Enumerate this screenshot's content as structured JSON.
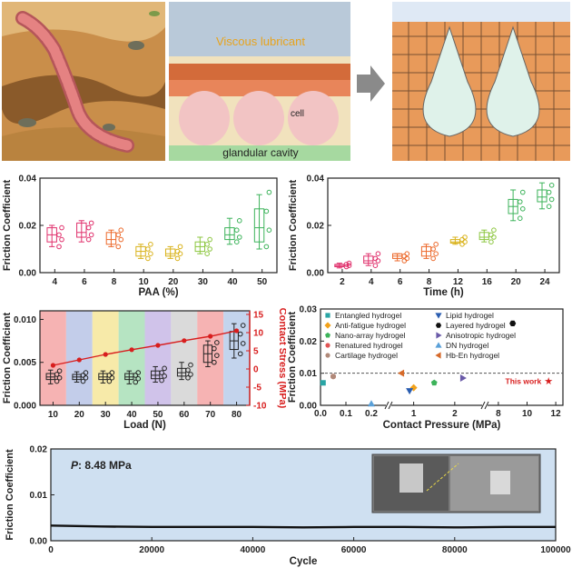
{
  "illustration": {
    "viscous_lubricant": "Viscous lubricant",
    "cell": "cell",
    "glandular_cavity": "glandular cavity"
  },
  "colors": {
    "pink": "#e0306c",
    "orange": "#ec6a2c",
    "yellow": "#d9b21a",
    "green": "#3cb35a",
    "purple": "#7c55b8",
    "gray": "#777777",
    "red": "#d81e1e",
    "blue": "#3b63b8",
    "plot_bg": "#cfe0f1"
  },
  "chart_data": [
    {
      "type": "box",
      "ylabel": "Friction Coefficient",
      "xlabel": "PAA (%)",
      "ylim": [
        0,
        0.04
      ],
      "yticks": [
        "0.00",
        "0.02",
        "0.04"
      ],
      "categories": [
        "4",
        "6",
        "8",
        "10",
        "20",
        "30",
        "40",
        "50"
      ],
      "colors": [
        "#e0306c",
        "#e0306c",
        "#ec6a2c",
        "#d9b21a",
        "#d9b21a",
        "#8cc63f",
        "#3cb35a",
        "#3cb35a"
      ],
      "boxes": [
        {
          "min": 0.011,
          "q1": 0.013,
          "median": 0.016,
          "q3": 0.019,
          "max": 0.02,
          "points": [
            0.011,
            0.014,
            0.016,
            0.019
          ]
        },
        {
          "min": 0.013,
          "q1": 0.015,
          "median": 0.017,
          "q3": 0.021,
          "max": 0.022,
          "points": [
            0.014,
            0.016,
            0.019,
            0.021
          ]
        },
        {
          "min": 0.011,
          "q1": 0.012,
          "median": 0.014,
          "q3": 0.017,
          "max": 0.018,
          "points": [
            0.011,
            0.014,
            0.016,
            0.018
          ]
        },
        {
          "min": 0.006,
          "q1": 0.007,
          "median": 0.009,
          "q3": 0.011,
          "max": 0.012,
          "points": [
            0.006,
            0.008,
            0.01,
            0.012
          ]
        },
        {
          "min": 0.006,
          "q1": 0.007,
          "median": 0.008,
          "q3": 0.01,
          "max": 0.011,
          "points": [
            0.006,
            0.008,
            0.009,
            0.011
          ]
        },
        {
          "min": 0.008,
          "q1": 0.009,
          "median": 0.011,
          "q3": 0.013,
          "max": 0.015,
          "points": [
            0.008,
            0.01,
            0.012,
            0.014
          ]
        },
        {
          "min": 0.012,
          "q1": 0.014,
          "median": 0.016,
          "q3": 0.019,
          "max": 0.023,
          "points": [
            0.013,
            0.015,
            0.018,
            0.022
          ]
        },
        {
          "min": 0.01,
          "q1": 0.013,
          "median": 0.019,
          "q3": 0.027,
          "max": 0.033,
          "points": [
            0.011,
            0.018,
            0.026,
            0.034
          ]
        }
      ]
    },
    {
      "type": "box",
      "ylabel": "Friction Coefficient",
      "xlabel": "Time (h)",
      "ylim": [
        0,
        0.04
      ],
      "yticks": [
        "0.00",
        "0.02",
        "0.04"
      ],
      "categories": [
        "2",
        "4",
        "6",
        "8",
        "12",
        "16",
        "20",
        "24"
      ],
      "colors": [
        "#e0306c",
        "#e0306c",
        "#ec6a2c",
        "#ec6a2c",
        "#d9b21a",
        "#8cc63f",
        "#3cb35a",
        "#3cb35a"
      ],
      "boxes": [
        {
          "min": 0.002,
          "q1": 0.0025,
          "median": 0.003,
          "q3": 0.0035,
          "max": 0.004,
          "points": [
            0.0025,
            0.003,
            0.0035,
            0.004
          ]
        },
        {
          "min": 0.003,
          "q1": 0.004,
          "median": 0.005,
          "q3": 0.007,
          "max": 0.008,
          "points": [
            0.003,
            0.005,
            0.006,
            0.008
          ]
        },
        {
          "min": 0.005,
          "q1": 0.006,
          "median": 0.007,
          "q3": 0.008,
          "max": 0.008,
          "points": [
            0.005,
            0.006,
            0.007,
            0.008
          ]
        },
        {
          "min": 0.006,
          "q1": 0.007,
          "median": 0.009,
          "q3": 0.011,
          "max": 0.012,
          "points": [
            0.006,
            0.008,
            0.01,
            0.012
          ]
        },
        {
          "min": 0.012,
          "q1": 0.0125,
          "median": 0.013,
          "q3": 0.014,
          "max": 0.015,
          "points": [
            0.012,
            0.013,
            0.014,
            0.015
          ]
        },
        {
          "min": 0.013,
          "q1": 0.014,
          "median": 0.015,
          "q3": 0.017,
          "max": 0.018,
          "points": [
            0.013,
            0.015,
            0.016,
            0.018
          ]
        },
        {
          "min": 0.022,
          "q1": 0.025,
          "median": 0.028,
          "q3": 0.031,
          "max": 0.035,
          "points": [
            0.023,
            0.027,
            0.03,
            0.034
          ]
        },
        {
          "min": 0.027,
          "q1": 0.03,
          "median": 0.032,
          "q3": 0.035,
          "max": 0.038,
          "points": [
            0.028,
            0.031,
            0.034,
            0.037
          ]
        }
      ]
    },
    {
      "type": "box+line",
      "ylabel": "Friction Coefficient",
      "y2label": "Contact Stress (MPa)",
      "xlabel": "Load (N)",
      "ylim": [
        0,
        0.011
      ],
      "yticks": [
        "0.000",
        "0.005",
        "0.010"
      ],
      "y2lim": [
        -10,
        16
      ],
      "y2ticks": [
        "-10",
        "-5",
        "0",
        "5",
        "10",
        "15"
      ],
      "categories": [
        "10",
        "20",
        "30",
        "40",
        "50",
        "60",
        "70",
        "80"
      ],
      "band_colors": [
        "#f4a6a6",
        "#b8c4e6",
        "#f6e69a",
        "#a9dfb7",
        "#c8b8e6",
        "#d4d4d4",
        "#f4a6a6",
        "#b8cdea"
      ],
      "boxes": [
        {
          "min": 0.0025,
          "q1": 0.003,
          "median": 0.0033,
          "q3": 0.0037,
          "max": 0.0041,
          "points": [
            0.0028,
            0.0032,
            0.0036,
            0.004
          ]
        },
        {
          "min": 0.0027,
          "q1": 0.003,
          "median": 0.0033,
          "q3": 0.0036,
          "max": 0.0039,
          "points": [
            0.0028,
            0.0032,
            0.0035,
            0.0038
          ]
        },
        {
          "min": 0.0026,
          "q1": 0.003,
          "median": 0.0033,
          "q3": 0.0037,
          "max": 0.004,
          "points": [
            0.0028,
            0.0032,
            0.0035,
            0.0038
          ]
        },
        {
          "min": 0.0025,
          "q1": 0.003,
          "median": 0.0033,
          "q3": 0.0037,
          "max": 0.004,
          "points": [
            0.0027,
            0.0031,
            0.0035,
            0.0038
          ]
        },
        {
          "min": 0.0027,
          "q1": 0.0031,
          "median": 0.0035,
          "q3": 0.004,
          "max": 0.0045,
          "points": [
            0.0029,
            0.0034,
            0.0038,
            0.0043
          ]
        },
        {
          "min": 0.003,
          "q1": 0.0034,
          "median": 0.0038,
          "q3": 0.0043,
          "max": 0.005,
          "points": [
            0.0032,
            0.0036,
            0.0041,
            0.0047
          ]
        },
        {
          "min": 0.0045,
          "q1": 0.005,
          "median": 0.006,
          "q3": 0.007,
          "max": 0.0075,
          "points": [
            0.005,
            0.0058,
            0.0066,
            0.0073
          ]
        },
        {
          "min": 0.0055,
          "q1": 0.0065,
          "median": 0.0075,
          "q3": 0.0086,
          "max": 0.0095,
          "points": [
            0.006,
            0.0072,
            0.0083,
            0.0093
          ]
        }
      ],
      "stress_line": [
        1.0,
        2.5,
        4.0,
        5.3,
        6.5,
        7.8,
        9.0,
        10.5
      ]
    },
    {
      "type": "scatter",
      "ylabel": "Friction Coefficient",
      "xlabel": "Contact Pressure (MPa)",
      "ylim": [
        0,
        0.03
      ],
      "yticks": [
        "0.00",
        "0.01",
        "0.02",
        "0.03"
      ],
      "xticks": [
        "0.0",
        "0.1",
        "0.2",
        "1",
        "2",
        "8",
        "10",
        "12"
      ],
      "reference_line": 0.01,
      "annotation": "This work",
      "series": [
        {
          "name": "Entangled hydrogel",
          "marker": "square",
          "color": "#2aa5a5",
          "x": 0.01,
          "y": 0.007
        },
        {
          "name": "Anti-fatigue hydrogel",
          "marker": "diamond",
          "color": "#f2a21b",
          "x": 1.0,
          "y": 0.0055
        },
        {
          "name": "Nano-array hydrogel",
          "marker": "pentagon",
          "color": "#3cb35a",
          "x": 1.5,
          "y": 0.007
        },
        {
          "name": "Renatured hydrogel",
          "marker": "circle",
          "color": "#e05555",
          "x": 0.05,
          "y": 0.009
        },
        {
          "name": "Cartilage hydrogel",
          "marker": "circle",
          "color": "#b08a7a",
          "x": 0.05,
          "y": 0.009
        },
        {
          "name": "Lipid hydrogel",
          "marker": "triangle-down",
          "color": "#2a5db0",
          "x": 0.9,
          "y": 0.0045
        },
        {
          "name": "Layered hydrogel",
          "marker": "hexagon",
          "color": "#111111",
          "x": 9.0,
          "y": 0.0255
        },
        {
          "name": "Anisotropic hydrogel",
          "marker": "triangle-right",
          "color": "#6a5aa8",
          "x": 2.2,
          "y": 0.0085
        },
        {
          "name": "DN hydrogel",
          "marker": "triangle-up",
          "color": "#5aa0d8",
          "x": 0.2,
          "y": 0.0005
        },
        {
          "name": "Hb-En hydrogel",
          "marker": "triangle-left",
          "color": "#d66a2a",
          "x": 0.7,
          "y": 0.01
        },
        {
          "name": "This work",
          "marker": "star",
          "color": "#d81e1e",
          "x": 11.5,
          "y": 0.0075
        }
      ]
    },
    {
      "type": "line",
      "ylabel": "Friction Coefficient",
      "xlabel": "Cycle",
      "ylim": [
        0,
        0.02
      ],
      "yticks": [
        "0.00",
        "0.01",
        "0.02"
      ],
      "xlim": [
        0,
        100000
      ],
      "xticks": [
        "0",
        "20000",
        "40000",
        "60000",
        "80000",
        "100000"
      ],
      "annotation_label": "P",
      "annotation_value": ": 8.48 MPa",
      "series": [
        {
          "x": [
            0,
            10000,
            20000,
            30000,
            40000,
            50000,
            60000,
            70000,
            80000,
            90000,
            100000
          ],
          "values": [
            0.0033,
            0.0031,
            0.003,
            0.003,
            0.003,
            0.0029,
            0.003,
            0.003,
            0.0029,
            0.003,
            0.003
          ]
        }
      ]
    }
  ]
}
